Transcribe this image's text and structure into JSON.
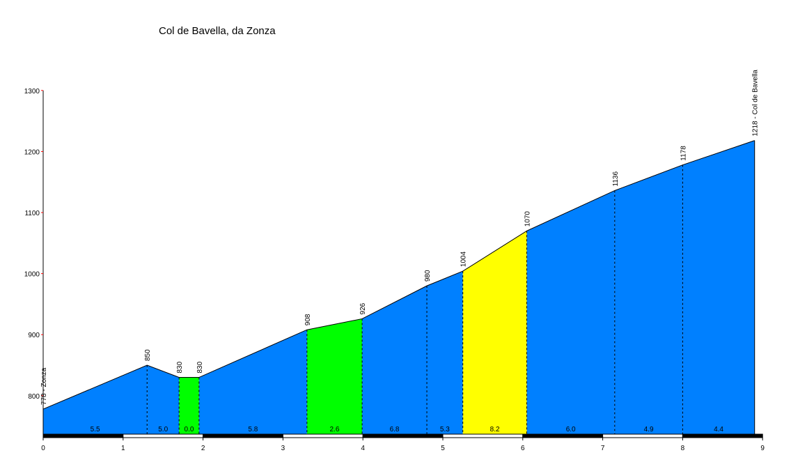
{
  "chart_data": {
    "type": "area",
    "title": "Col de Bavella, da Zonza",
    "xlabel": "",
    "ylabel": "",
    "xlim": [
      0,
      9
    ],
    "ylim": [
      737,
      1300
    ],
    "x_ticks": [
      "0",
      "1",
      "2",
      "3",
      "4",
      "5",
      "6",
      "7",
      "8",
      "9"
    ],
    "y_ticks": [
      "800",
      "900",
      "1000",
      "1100",
      "1200",
      "1300"
    ],
    "points": [
      {
        "x": 0.0,
        "y": 778,
        "label": "778 - Zonza"
      },
      {
        "x": 1.3,
        "y": 850,
        "label": "850"
      },
      {
        "x": 1.7,
        "y": 830,
        "label": "830"
      },
      {
        "x": 1.95,
        "y": 830,
        "label": "830"
      },
      {
        "x": 3.3,
        "y": 908,
        "label": "908"
      },
      {
        "x": 3.99,
        "y": 926,
        "label": "926"
      },
      {
        "x": 4.8,
        "y": 980,
        "label": "980"
      },
      {
        "x": 5.25,
        "y": 1004,
        "label": "1004"
      },
      {
        "x": 6.05,
        "y": 1070,
        "label": "1070"
      },
      {
        "x": 7.15,
        "y": 1136,
        "label": "1136"
      },
      {
        "x": 8.0,
        "y": 1178,
        "label": "1178"
      },
      {
        "x": 8.9,
        "y": 1218,
        "label": "1218 - Col de Bavella"
      }
    ],
    "segments": [
      {
        "from": 0.0,
        "to": 1.3,
        "gradient": "5.5",
        "color": "#0080ff"
      },
      {
        "from": 1.3,
        "to": 1.7,
        "gradient": "5.0",
        "color": "#0080ff"
      },
      {
        "from": 1.7,
        "to": 1.95,
        "gradient": "0.0",
        "color": "#00ff00"
      },
      {
        "from": 1.95,
        "to": 3.3,
        "gradient": "5.8",
        "color": "#0080ff"
      },
      {
        "from": 3.3,
        "to": 3.99,
        "gradient": "2.6",
        "color": "#00ff00"
      },
      {
        "from": 3.99,
        "to": 4.8,
        "gradient": "6.8",
        "color": "#0080ff"
      },
      {
        "from": 4.8,
        "to": 5.25,
        "gradient": "5.3",
        "color": "#0080ff"
      },
      {
        "from": 5.25,
        "to": 6.05,
        "gradient": "8.2",
        "color": "#ffff00"
      },
      {
        "from": 6.05,
        "to": 7.15,
        "gradient": "6.0",
        "color": "#0080ff"
      },
      {
        "from": 7.15,
        "to": 8.0,
        "gradient": "4.9",
        "color": "#0080ff"
      },
      {
        "from": 8.0,
        "to": 8.9,
        "gradient": "4.4",
        "color": "#0080ff"
      }
    ],
    "grid": false,
    "legend": "none"
  }
}
